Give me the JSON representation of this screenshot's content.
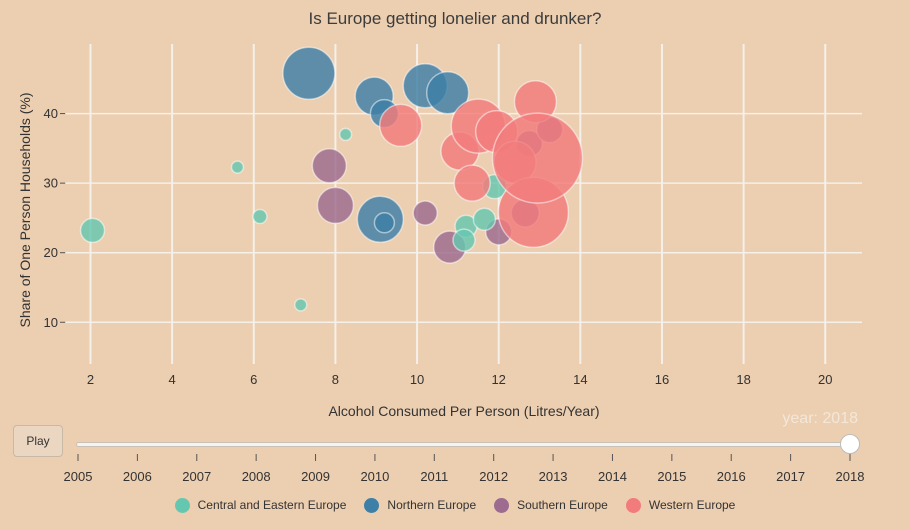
{
  "chart_data": {
    "type": "scatter",
    "title": "Is Europe getting lonelier and drunker?",
    "xlabel": "Alcohol Consumed Per Person (Litres/Year)",
    "ylabel": "Share of One Person Households (%)",
    "xlim": [
      1.4,
      20.9
    ],
    "ylim": [
      4,
      50
    ],
    "x_ticks": [
      2,
      4,
      6,
      8,
      10,
      12,
      14,
      16,
      18,
      20
    ],
    "y_ticks": [
      10,
      20,
      30,
      40
    ],
    "grid": "vertical-and-horizontal",
    "legend_position": "bottom",
    "series": [
      {
        "name": "Central and Eastern Europe",
        "color": "#66c7b0",
        "points": [
          {
            "x": 2.05,
            "y": 23.2,
            "r": 12
          },
          {
            "x": 5.6,
            "y": 32.3,
            "r": 6
          },
          {
            "x": 6.15,
            "y": 25.2,
            "r": 7
          },
          {
            "x": 7.15,
            "y": 12.5,
            "r": 6
          },
          {
            "x": 8.25,
            "y": 37.0,
            "r": 6
          },
          {
            "x": 11.2,
            "y": 23.8,
            "r": 11
          },
          {
            "x": 11.15,
            "y": 21.8,
            "r": 11
          },
          {
            "x": 11.65,
            "y": 24.8,
            "r": 11
          },
          {
            "x": 11.9,
            "y": 29.5,
            "r": 12
          }
        ]
      },
      {
        "name": "Northern Europe",
        "color": "#3d7fa6",
        "points": [
          {
            "x": 7.35,
            "y": 45.8,
            "r": 26
          },
          {
            "x": 8.95,
            "y": 42.5,
            "r": 19
          },
          {
            "x": 9.2,
            "y": 40.0,
            "r": 14
          },
          {
            "x": 10.2,
            "y": 44.0,
            "r": 22
          },
          {
            "x": 10.75,
            "y": 43.0,
            "r": 21
          },
          {
            "x": 9.1,
            "y": 24.8,
            "r": 23
          },
          {
            "x": 9.2,
            "y": 24.3,
            "r": 10
          }
        ]
      },
      {
        "name": "Southern Europe",
        "color": "#9c6b8f",
        "points": [
          {
            "x": 7.85,
            "y": 32.5,
            "r": 17
          },
          {
            "x": 8.0,
            "y": 26.8,
            "r": 18
          },
          {
            "x": 10.2,
            "y": 25.7,
            "r": 12
          },
          {
            "x": 10.8,
            "y": 20.8,
            "r": 16
          },
          {
            "x": 12.0,
            "y": 23.0,
            "r": 13
          },
          {
            "x": 12.65,
            "y": 25.7,
            "r": 14
          },
          {
            "x": 12.75,
            "y": 35.7,
            "r": 13
          },
          {
            "x": 13.25,
            "y": 37.7,
            "r": 13
          }
        ]
      },
      {
        "name": "Western Europe",
        "color": "#f27b7b",
        "points": [
          {
            "x": 9.6,
            "y": 38.3,
            "r": 21
          },
          {
            "x": 11.05,
            "y": 34.6,
            "r": 19
          },
          {
            "x": 11.35,
            "y": 30.0,
            "r": 18
          },
          {
            "x": 11.5,
            "y": 38.2,
            "r": 27
          },
          {
            "x": 11.95,
            "y": 37.4,
            "r": 21
          },
          {
            "x": 12.4,
            "y": 33.0,
            "r": 21
          },
          {
            "x": 12.9,
            "y": 41.7,
            "r": 21
          },
          {
            "x": 12.85,
            "y": 25.8,
            "r": 35
          },
          {
            "x": 12.95,
            "y": 33.6,
            "r": 45
          }
        ]
      }
    ]
  },
  "controls": {
    "play_label": "Play",
    "slider_label": "year: 2018",
    "years": [
      "2005",
      "2006",
      "2007",
      "2008",
      "2009",
      "2010",
      "2011",
      "2012",
      "2013",
      "2014",
      "2015",
      "2016",
      "2017",
      "2018"
    ],
    "selected_year": "2018"
  },
  "colors": {
    "background": "#ecceb0",
    "grid": "#f4f0ea"
  }
}
